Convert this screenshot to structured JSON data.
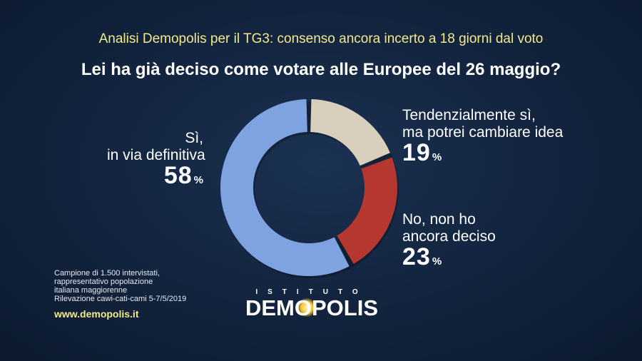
{
  "header": {
    "subtitle": "Analisi Demopolis per il TG3: consenso ancora incerto a 18 giorni dal voto",
    "title": "Lei ha già deciso come votare alle Europee del 26 maggio?"
  },
  "chart_data": {
    "type": "pie",
    "donut": true,
    "title": "Lei ha già deciso come votare alle Europee del 26 maggio?",
    "categories": [
      "Tendenzialmente sì, ma potrei cambiare idea",
      "No, non ho ancora deciso",
      "Sì, in via definitiva"
    ],
    "values": [
      19,
      23,
      58
    ],
    "unit": "%",
    "colors": [
      "#d8cfbd",
      "#b5372f",
      "#7ea3e0"
    ]
  },
  "labels": {
    "yes": {
      "line1": "Sì,",
      "line2": "in via definitiva",
      "value": "58",
      "sign": "%"
    },
    "maybe": {
      "line1": "Tendenzialmente sì,",
      "line2": "ma potrei cambiare idea",
      "value": "19",
      "sign": "%"
    },
    "no": {
      "line1": "No, non ho",
      "line2": "ancora deciso",
      "value": "23",
      "sign": "%"
    }
  },
  "footer": {
    "note": [
      "Campione di 1.500 intervistati,",
      "rappresentativo popolazione",
      "italiana maggiorenne",
      "Rilevazione cawi-cati-cami 5-7/5/2019"
    ],
    "website": "www.demopolis.it",
    "logo_top": "ISTITUTO",
    "logo_main": "DEMOPOLIS"
  }
}
